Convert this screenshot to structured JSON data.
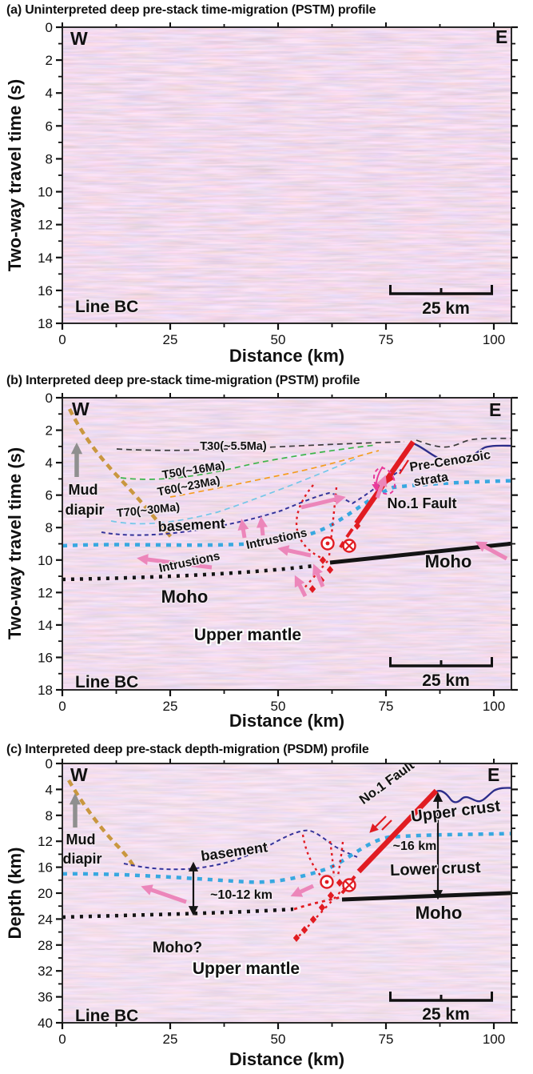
{
  "titles": {
    "a": "(a) Uninterpreted deep pre-stack time-migration (PSTM) profile",
    "b": "(b) Interpreted deep pre-stack time-migration (PSTM) profile",
    "c": "(c) Interpreted deep pre-stack depth-migration (PSDM) profile"
  },
  "axes": {
    "x": {
      "label": "Distance (km)",
      "ticks": [
        0,
        25,
        50,
        75,
        100
      ],
      "range_km": [
        0,
        104
      ]
    },
    "time": {
      "label": "Two-way travel time (s)",
      "ticks": [
        0,
        2,
        4,
        6,
        8,
        10,
        12,
        14,
        16,
        18
      ],
      "range_s": [
        0,
        18
      ]
    },
    "depth": {
      "label": "Depth (km)",
      "ticks": [
        0,
        4,
        8,
        12,
        16,
        20,
        24,
        28,
        32,
        36,
        40
      ],
      "range_km": [
        0,
        40
      ]
    }
  },
  "labels": {
    "west": "W",
    "east": "E",
    "line_name": "Line BC",
    "scalebar": "25 km",
    "mud_line1": "Mud",
    "mud_line2": "diapir",
    "t30": "T30(~5.5Ma)",
    "t50": "T50(~16Ma)",
    "t60": "T60(~23Ma)",
    "t70": "T70(~30Ma)",
    "basement": "basement",
    "intrusions": "Intrustions",
    "pre_cenozoic_1": "Pre-Cenozoic",
    "pre_cenozoic_2": "strata",
    "no1_fault": "No.1 Fault",
    "moho": "Moho",
    "moho_question": "Moho?",
    "upper_mantle": "Upper mantle",
    "upper_crust": "Upper crust",
    "lower_crust": "Lower crust",
    "thickness_west": "~10-12 km",
    "thickness_east": "~16 km"
  },
  "colors": {
    "fault_red": "#e11c22",
    "horizon_t30": "#3d3d3d",
    "horizon_t50": "#3cb54a",
    "horizon_t60": "#f59d1f",
    "horizon_t70": "#74c7e8",
    "basement_navy": "#35349b",
    "crust_top_cyan": "#38a8e0",
    "moho_black": "#141414",
    "mud_diapir_tan": "#c9973f",
    "intrusion_arrow_pink": "#ec86ba",
    "mantle_magenta": "#f12ba5",
    "upper_crust_blue": "#3a4fa0",
    "lower_crust_red": "#e8355a",
    "gray_text": "#6b6b6b",
    "ellipse_magenta": "#e83b9a"
  }
}
